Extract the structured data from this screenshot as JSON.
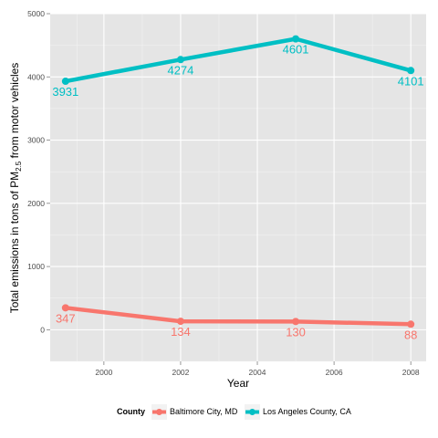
{
  "chart_data": {
    "type": "line",
    "xlabel": "Year",
    "ylabel": "Total emissions in tons of PM",
    "ylabel_sub": "2.5",
    "ylabel_suffix": " from motor vehicles",
    "x": [
      1999,
      2002,
      2005,
      2008
    ],
    "xlim": [
      1998.6,
      2008.4
    ],
    "ylim": [
      -500,
      5000
    ],
    "x_ticks": [
      2000,
      2002,
      2004,
      2006,
      2008
    ],
    "y_ticks": [
      0,
      1000,
      2000,
      3000,
      4000,
      5000
    ],
    "grid": true,
    "legend_title": "County",
    "legend_position": "bottom",
    "series": [
      {
        "name": "Baltimore City, MD",
        "color": "#F8766D",
        "values": [
          347,
          134,
          130,
          88
        ],
        "labels": [
          "347",
          "134",
          "130",
          "88"
        ]
      },
      {
        "name": "Los Angeles County, CA",
        "color": "#00BFC4",
        "values": [
          3931,
          4274,
          4601,
          4101
        ],
        "labels": [
          "3931",
          "4274",
          "4601",
          "4101"
        ]
      }
    ]
  }
}
